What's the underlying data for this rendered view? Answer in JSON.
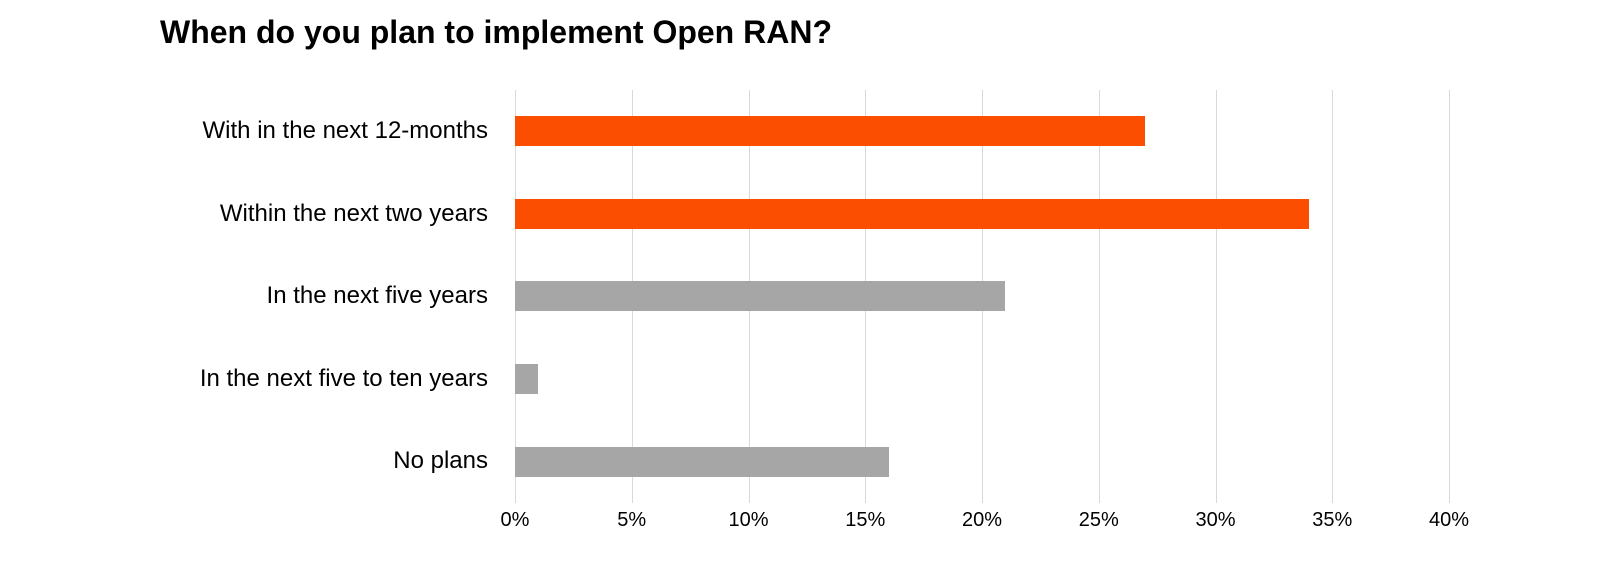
{
  "page": {
    "background_color": "#ffffff"
  },
  "chart_data": {
    "type": "bar",
    "orientation": "horizontal",
    "title": "When do you plan to implement Open RAN?",
    "categories": [
      "With in the next 12-months",
      "Within the next two years",
      "In the next five years",
      "In the next five to ten years",
      "No plans"
    ],
    "values": [
      27,
      34,
      21,
      1,
      16
    ],
    "unit": "%",
    "bar_colors": [
      "#FC4E00",
      "#FC4E00",
      "#A6A6A6",
      "#A6A6A6",
      "#A6A6A6"
    ],
    "xlabel": "",
    "ylabel": "",
    "xlim": [
      0,
      40
    ],
    "x_ticks": [
      0,
      5,
      10,
      15,
      20,
      25,
      30,
      35,
      40
    ],
    "x_tick_labels": [
      "0%",
      "5%",
      "10%",
      "15%",
      "20%",
      "25%",
      "30%",
      "35%",
      "40%"
    ],
    "grid": "vertical-only",
    "legend": "none",
    "colors": {
      "highlight": "#FC4E00",
      "muted": "#A6A6A6",
      "gridline": "#D9D9D9",
      "text": "#000000"
    }
  }
}
